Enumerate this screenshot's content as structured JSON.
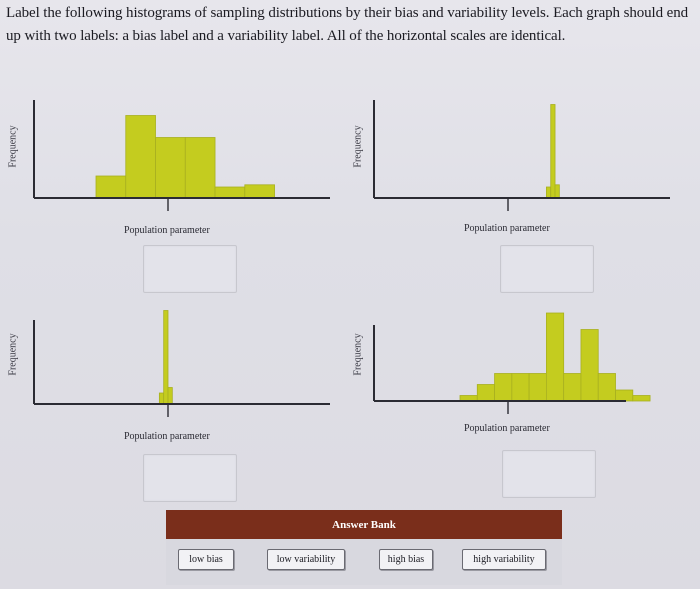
{
  "instructions": "Label the following histograms of sampling distributions by their bias and variability levels. Each graph should end up with two labels: a bias label and a variability label. All of the horizontal scales are identical.",
  "bar_color": "#c4cc1f",
  "bar_edge_color": "#a8b020",
  "axis_color": "#2b2b33",
  "bank_header_color": "#7a2e1b",
  "answer_bank": {
    "title": "Answer Bank",
    "items": [
      "low bias",
      "low variability",
      "high bias",
      "high variability"
    ]
  },
  "chart_data": [
    {
      "type": "bar",
      "xlabel": "Population parameter",
      "ylabel": "Frequency",
      "bins": [
        {
          "x": -1.5,
          "w": 0.62,
          "h": 2.0
        },
        {
          "x": -0.88,
          "w": 0.62,
          "h": 7.5
        },
        {
          "x": -0.26,
          "w": 0.62,
          "h": 5.5
        },
        {
          "x": 0.36,
          "w": 0.62,
          "h": 5.5
        },
        {
          "x": 0.98,
          "w": 0.62,
          "h": 1.0
        },
        {
          "x": 1.6,
          "w": 0.62,
          "h": 1.2
        }
      ]
    },
    {
      "type": "bar",
      "xlabel": "Population parameter",
      "ylabel": "Frequency",
      "bins": [
        {
          "x": 0.8,
          "w": 0.09,
          "h": 1.0
        },
        {
          "x": 0.89,
          "w": 0.09,
          "h": 8.5
        },
        {
          "x": 0.98,
          "w": 0.09,
          "h": 1.2
        }
      ]
    },
    {
      "type": "bar",
      "xlabel": "Population parameter",
      "ylabel": "Frequency",
      "bins": [
        {
          "x": -0.18,
          "w": 0.09,
          "h": 1.0
        },
        {
          "x": -0.09,
          "w": 0.09,
          "h": 8.5
        },
        {
          "x": 0.0,
          "w": 0.09,
          "h": 1.5
        }
      ]
    },
    {
      "type": "bar",
      "xlabel": "Population parameter",
      "ylabel": "Frequency",
      "bins": [
        {
          "x": -1.0,
          "w": 0.36,
          "h": 0.5
        },
        {
          "x": -0.64,
          "w": 0.36,
          "h": 1.5
        },
        {
          "x": -0.28,
          "w": 0.36,
          "h": 2.5
        },
        {
          "x": 0.08,
          "w": 0.36,
          "h": 2.5
        },
        {
          "x": 0.44,
          "w": 0.36,
          "h": 2.5
        },
        {
          "x": 0.8,
          "w": 0.36,
          "h": 8.0
        },
        {
          "x": 1.16,
          "w": 0.36,
          "h": 2.5
        },
        {
          "x": 1.52,
          "w": 0.36,
          "h": 6.5
        },
        {
          "x": 1.88,
          "w": 0.36,
          "h": 2.5
        },
        {
          "x": 2.24,
          "w": 0.36,
          "h": 1.0
        },
        {
          "x": 2.6,
          "w": 0.36,
          "h": 0.5
        }
      ]
    }
  ]
}
